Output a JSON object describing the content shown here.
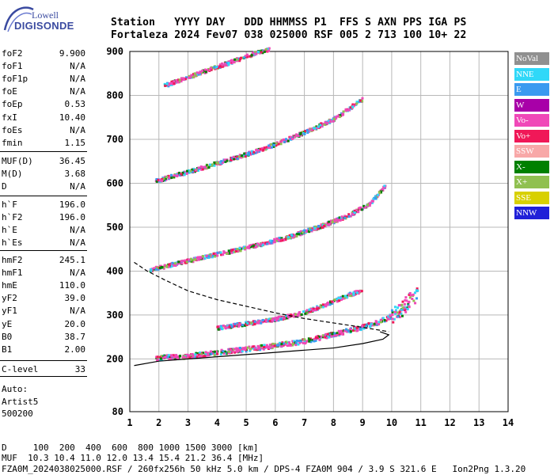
{
  "logo": {
    "line1": "Lowell",
    "line2": "DIGISONDE"
  },
  "header": {
    "line1": "Station   YYYY DAY   DDD HHMMSS P1  FFS S AXN PPS IGA PS",
    "line2": "Fortaleza 2024 Fev07 038 025000 RSF 005 2 713 100 10+ 22"
  },
  "params_group1": [
    {
      "name": "foF2",
      "value": "9.900"
    },
    {
      "name": "foF1",
      "value": "N/A"
    },
    {
      "name": "foF1p",
      "value": "N/A"
    },
    {
      "name": "foE",
      "value": "N/A"
    },
    {
      "name": "foEp",
      "value": "0.53"
    },
    {
      "name": "fxI",
      "value": "10.40"
    },
    {
      "name": "foEs",
      "value": "N/A"
    },
    {
      "name": "fmin",
      "value": "1.15"
    }
  ],
  "params_group2": [
    {
      "name": "MUF(D)",
      "value": "36.45"
    },
    {
      "name": "M(D)",
      "value": "3.68"
    },
    {
      "name": "D",
      "value": "N/A"
    }
  ],
  "params_group3": [
    {
      "name": "h`F",
      "value": "196.0"
    },
    {
      "name": "h`F2",
      "value": "196.0"
    },
    {
      "name": "h`E",
      "value": "N/A"
    },
    {
      "name": "h`Es",
      "value": "N/A"
    }
  ],
  "params_group4": [
    {
      "name": "hmF2",
      "value": "245.1"
    },
    {
      "name": "hmF1",
      "value": "N/A"
    },
    {
      "name": "hmE",
      "value": "110.0"
    },
    {
      "name": "yF2",
      "value": "39.0"
    },
    {
      "name": "yF1",
      "value": "N/A"
    },
    {
      "name": "yE",
      "value": "20.0"
    },
    {
      "name": "B0",
      "value": "38.7"
    },
    {
      "name": "B1",
      "value": "2.00"
    }
  ],
  "params_group5": [
    {
      "name": "C-level",
      "value": "33"
    }
  ],
  "auto": {
    "line1": "Auto:",
    "line2": "Artist5",
    "line3": "500200"
  },
  "legend": [
    {
      "label": "NoVal",
      "color": "#909090"
    },
    {
      "label": "NNE",
      "color": "#30d8f8"
    },
    {
      "label": "E",
      "color": "#3a9af0"
    },
    {
      "label": "W",
      "color": "#a800a8"
    },
    {
      "label": "Vo-",
      "color": "#f048b8"
    },
    {
      "label": "Vo+",
      "color": "#f01858"
    },
    {
      "label": "SSW",
      "color": "#f8a8a8"
    },
    {
      "label": "X-",
      "color": "#008000"
    },
    {
      "label": "X+",
      "color": "#90c050"
    },
    {
      "label": "SSE",
      "color": "#d8d000"
    },
    {
      "label": "NNW",
      "color": "#2020d8"
    }
  ],
  "footer": {
    "line1": "D     100  200  400  600  800 1000 1500 3000 [km]",
    "line2": "MUF  10.3 10.4 11.0 12.0 13.4 15.4 21.2 36.4 [MHz]",
    "line3": "FZA0M_2024038025000.RSF / 260fx256h 50 kHz 5.0 km / DPS-4 FZA0M 904 / 3.9 S 321.6 E   Ion2Png 1.3.20"
  },
  "chart_data": {
    "type": "scatter",
    "xlim": [
      1,
      14
    ],
    "ylim": [
      80,
      900
    ],
    "x_ticks": [
      "1",
      "2",
      "3",
      "4",
      "5",
      "6",
      "7",
      "8",
      "9",
      "10",
      "11",
      "12",
      "13",
      "14"
    ],
    "y_ticks": [
      "80",
      "200",
      "300",
      "400",
      "500",
      "600",
      "700",
      "800",
      "900"
    ],
    "grid": true,
    "traces": [
      {
        "name": "O-trace 1st hop",
        "x": [
          1.9,
          3,
          4,
          5,
          6,
          7,
          7.5,
          8,
          8.5,
          9,
          9.5,
          10,
          10.3,
          10.6,
          10.9
        ],
        "y": [
          202,
          206,
          214,
          222,
          230,
          240,
          248,
          256,
          264,
          272,
          282,
          298,
          312,
          330,
          350
        ]
      },
      {
        "name": "O-trace 2nd hop",
        "x": [
          1.7,
          2.5,
          3.5,
          4.5,
          5.5,
          6.5,
          7.5,
          8.5,
          9.3,
          9.8
        ],
        "y": [
          402,
          415,
          430,
          445,
          460,
          478,
          500,
          525,
          555,
          595
        ]
      },
      {
        "name": "O-trace 3rd hop",
        "x": [
          1.9,
          3,
          4,
          5,
          6,
          7,
          8,
          8.5,
          9
        ],
        "y": [
          605,
          625,
          645,
          665,
          688,
          715,
          745,
          768,
          790
        ]
      },
      {
        "name": "O-trace 4th hop",
        "x": [
          2.2,
          3,
          3.8,
          4.6,
          5.3,
          5.8
        ],
        "y": [
          822,
          840,
          860,
          878,
          895,
          905
        ]
      },
      {
        "name": "X-trace",
        "x": [
          4,
          5,
          6,
          7,
          8,
          8.5,
          9
        ],
        "y": [
          270,
          280,
          290,
          305,
          330,
          345,
          355
        ]
      }
    ],
    "profile_solid": {
      "x": [
        1.15,
        2,
        3,
        4,
        5,
        6,
        7,
        8,
        9,
        9.7,
        9.9,
        9.6
      ],
      "y": [
        185,
        195,
        200,
        205,
        210,
        215,
        220,
        225,
        235,
        245,
        255,
        262
      ]
    },
    "profile_dashed": {
      "x": [
        1.15,
        1.6,
        2.2,
        3,
        4,
        5,
        6,
        7,
        8,
        9,
        9.9
      ],
      "y": [
        420,
        400,
        380,
        355,
        335,
        320,
        305,
        292,
        282,
        272,
        262
      ]
    }
  }
}
